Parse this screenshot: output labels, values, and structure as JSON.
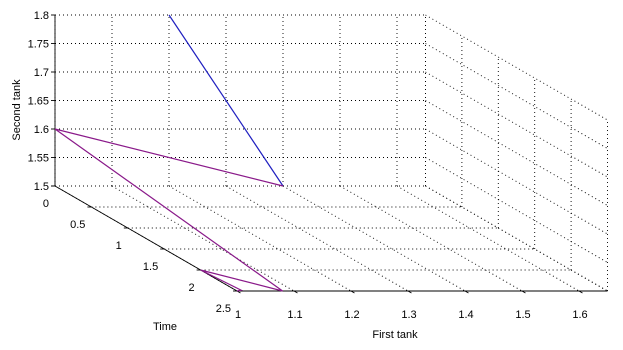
{
  "chart_data": {
    "type": "line",
    "title": "",
    "projection": "3d",
    "axes": {
      "x": {
        "label": "First tank",
        "range": [
          1,
          1.65
        ],
        "ticks": [
          1,
          1.1,
          1.2,
          1.3,
          1.4,
          1.5,
          1.6
        ],
        "tick_labels": [
          "1",
          "1.1",
          "1.2",
          "1.3",
          "1.4",
          "1.5",
          "1.6"
        ]
      },
      "t": {
        "label": "Time",
        "range": [
          0,
          2.5
        ],
        "ticks": [
          0,
          0.5,
          1,
          1.5,
          2,
          2.5
        ],
        "tick_labels": [
          "0",
          "0.5",
          "1",
          "1.5",
          "2",
          "2.5"
        ]
      },
      "y": {
        "label": "Second tank",
        "range": [
          1.5,
          1.8
        ],
        "ticks": [
          1.5,
          1.55,
          1.6,
          1.65,
          1.7,
          1.75,
          1.8
        ],
        "tick_labels": [
          "1.5",
          "1.55",
          "1.6",
          "1.65",
          "1.7",
          "1.75",
          "1.8"
        ]
      }
    },
    "grid": true,
    "series": [
      {
        "color": "#2020c0",
        "points": [
          {
            "first_tank": 1.2,
            "time": 0.0,
            "second_tank": 1.8
          },
          {
            "first_tank": 1.4,
            "time": 0.0,
            "second_tank": 1.5
          }
        ]
      },
      {
        "color": "#8a1a8a",
        "points": [
          {
            "first_tank": 1.4,
            "time": 0.0,
            "second_tank": 1.5
          },
          {
            "first_tank": 1.0,
            "time": 0.0,
            "second_tank": 1.6
          },
          {
            "first_tank": 1.08,
            "time": 2.5,
            "second_tank": 1.5
          },
          {
            "first_tank": 1.0,
            "time": 2.0,
            "second_tank": 1.5
          },
          {
            "first_tank": 1.01,
            "time": 2.48,
            "second_tank": 1.5
          },
          {
            "first_tank": 1.0,
            "time": 2.5,
            "second_tank": 1.5
          }
        ]
      }
    ]
  }
}
